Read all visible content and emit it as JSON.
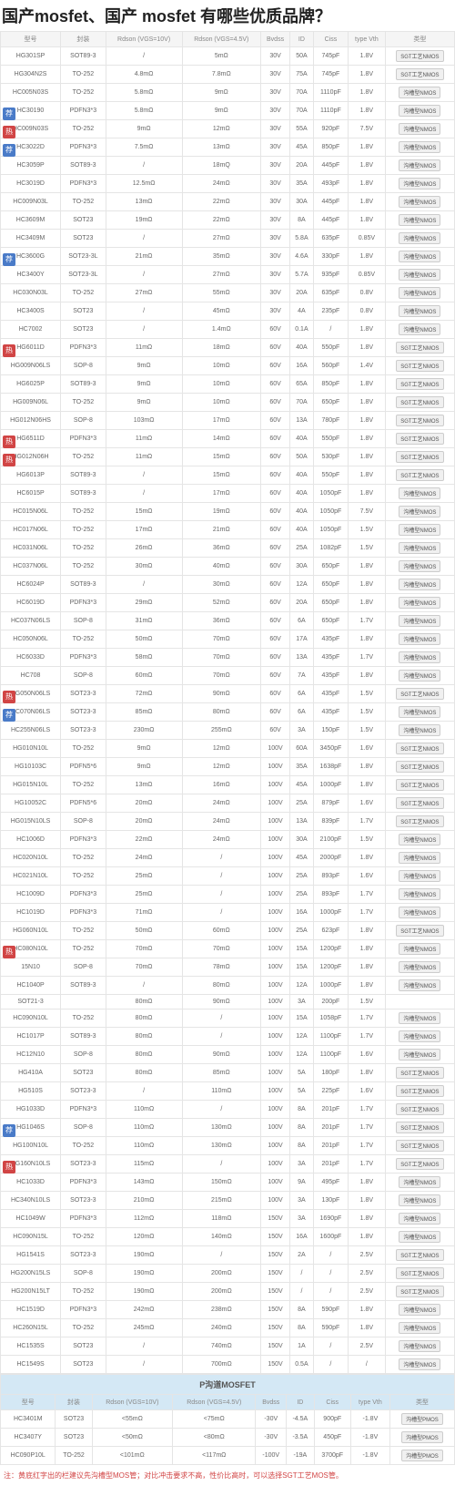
{
  "page_title": "国产mosfet、国产 mosfet 有哪些优质品牌？",
  "subtitle_left": "型号列表",
  "subtitle_right": "参数对比",
  "tag_blue_text": "荐",
  "tag_red_text": "热",
  "columns": [
    "型号",
    "封装",
    "Rdson (VGS=10V)",
    "Rdson (VGS=4.5V)",
    "Bvdss",
    "ID",
    "Ciss",
    "type Vth",
    "类型"
  ],
  "btn_normal": "沟槽型NMOS",
  "btn_sgt": "SGT工艺NMOS",
  "btn_pmos": "沟槽型PMOS",
  "section_p": "P沟道MOSFET",
  "note_text": "注：黄底红字出的栏建议先沟槽型MOS管；对比冲击要求不高，性价比高时，可以选择SGT工艺MOS管。",
  "rows": [
    {
      "tag": "",
      "c": [
        "HG301SP",
        "SOT89-3",
        "/",
        "5mΩ",
        "30V",
        "50A",
        "745pF",
        "1.8V",
        "sgt"
      ]
    },
    {
      "tag": "",
      "c": [
        "HG304N2S",
        "TO-252",
        "4.8mΩ",
        "7.8mΩ",
        "30V",
        "75A",
        "745pF",
        "1.8V",
        "sgt"
      ]
    },
    {
      "tag": "",
      "c": [
        "HC005N03S",
        "TO-252",
        "5.8mΩ",
        "9mΩ",
        "30V",
        "70A",
        "1110pF",
        "1.8V",
        "normal"
      ]
    },
    {
      "tag": "荐",
      "c": [
        "HC30190",
        "PDFN3*3",
        "5.8mΩ",
        "9mΩ",
        "30V",
        "70A",
        "1110pF",
        "1.8V",
        "normal"
      ]
    },
    {
      "tag": "热",
      "c": [
        "HC009N03S",
        "TO-252",
        "9mΩ",
        "12mΩ",
        "30V",
        "55A",
        "920pF",
        "7.5V",
        "normal"
      ]
    },
    {
      "tag": "荐",
      "c": [
        "HC3022D",
        "PDFN3*3",
        "7.5mΩ",
        "13mΩ",
        "30V",
        "45A",
        "850pF",
        "1.8V",
        "normal"
      ]
    },
    {
      "tag": "",
      "c": [
        "HC3059P",
        "SOT89-3",
        "/",
        "18mQ",
        "30V",
        "20A",
        "445pF",
        "1.8V",
        "normal"
      ]
    },
    {
      "tag": "",
      "c": [
        "HC3019D",
        "PDFN3*3",
        "12.5mΩ",
        "24mΩ",
        "30V",
        "35A",
        "493pF",
        "1.8V",
        "normal"
      ]
    },
    {
      "tag": "",
      "c": [
        "HC009N03L",
        "TO-252",
        "13mΩ",
        "22mΩ",
        "30V",
        "30A",
        "445pF",
        "1.8V",
        "normal"
      ]
    },
    {
      "tag": "",
      "c": [
        "HC3609M",
        "SOT23",
        "19mΩ",
        "22mΩ",
        "30V",
        "8A",
        "445pF",
        "1.8V",
        "normal"
      ]
    },
    {
      "tag": "",
      "c": [
        "HC3409M",
        "SOT23",
        "/",
        "27mΩ",
        "30V",
        "5.8A",
        "635pF",
        "0.85V",
        "normal"
      ]
    },
    {
      "tag": "荐",
      "c": [
        "HC3600G",
        "SOT23-3L",
        "21mΩ",
        "35mΩ",
        "30V",
        "4.6A",
        "330pF",
        "1.8V",
        "normal"
      ]
    },
    {
      "tag": "",
      "c": [
        "HC3400Y",
        "SOT23-3L",
        "/",
        "27mΩ",
        "30V",
        "5.7A",
        "935pF",
        "0.85V",
        "normal"
      ]
    },
    {
      "tag": "",
      "c": [
        "HC030N03L",
        "TO-252",
        "27mΩ",
        "55mΩ",
        "30V",
        "20A",
        "635pF",
        "0.8V",
        "normal"
      ]
    },
    {
      "tag": "",
      "c": [
        "HC3400S",
        "SOT23",
        "/",
        "45mΩ",
        "30V",
        "4A",
        "235pF",
        "0.8V",
        "normal"
      ]
    },
    {
      "tag": "",
      "c": [
        "HC7002",
        "SOT23",
        "/",
        "1.4mΩ",
        "60V",
        "0.1A",
        "/",
        "1.8V",
        "normal"
      ]
    },
    {
      "tag": "热",
      "c": [
        "HG6011D",
        "PDFN3*3",
        "11mΩ",
        "18mΩ",
        "60V",
        "40A",
        "550pF",
        "1.8V",
        "sgt"
      ]
    },
    {
      "tag": "",
      "c": [
        "HG009N06LS",
        "SOP-8",
        "9mΩ",
        "10mΩ",
        "60V",
        "16A",
        "560pF",
        "1.4V",
        "sgt"
      ]
    },
    {
      "tag": "",
      "c": [
        "HG6025P",
        "SOT89-3",
        "9mΩ",
        "10mΩ",
        "60V",
        "65A",
        "850pF",
        "1.8V",
        "sgt"
      ]
    },
    {
      "tag": "",
      "c": [
        "HG009N06L",
        "TO-252",
        "9mΩ",
        "10mΩ",
        "60V",
        "70A",
        "650pF",
        "1.8V",
        "sgt"
      ]
    },
    {
      "tag": "",
      "c": [
        "HG012N06HS",
        "SOP-8",
        "103mΩ",
        "17mΩ",
        "60V",
        "13A",
        "780pF",
        "1.8V",
        "sgt"
      ]
    },
    {
      "tag": "热",
      "c": [
        "HG6511D",
        "PDFN3*3",
        "11mΩ",
        "14mΩ",
        "60V",
        "40A",
        "550pF",
        "1.8V",
        "sgt"
      ]
    },
    {
      "tag": "热",
      "c": [
        "HG012N06H",
        "TO-252",
        "11mΩ",
        "15mΩ",
        "60V",
        "50A",
        "530pF",
        "1.8V",
        "sgt"
      ]
    },
    {
      "tag": "",
      "c": [
        "HG6013P",
        "SOT89-3",
        "/",
        "15mΩ",
        "60V",
        "40A",
        "550pF",
        "1.8V",
        "sgt"
      ]
    },
    {
      "tag": "",
      "c": [
        "HC6015P",
        "SOT89-3",
        "/",
        "17mΩ",
        "60V",
        "40A",
        "1050pF",
        "1.8V",
        "normal"
      ]
    },
    {
      "tag": "",
      "c": [
        "HC015N06L",
        "TO-252",
        "15mΩ",
        "19mΩ",
        "60V",
        "40A",
        "1050pF",
        "7.5V",
        "normal"
      ]
    },
    {
      "tag": "",
      "c": [
        "HC017N06L",
        "TO-252",
        "17mΩ",
        "21mΩ",
        "60V",
        "40A",
        "1050pF",
        "1.5V",
        "normal"
      ]
    },
    {
      "tag": "",
      "c": [
        "HC031N06L",
        "TO-252",
        "26mΩ",
        "36mΩ",
        "60V",
        "25A",
        "1082pF",
        "1.5V",
        "normal"
      ]
    },
    {
      "tag": "",
      "c": [
        "HC037N06L",
        "TO-252",
        "30mΩ",
        "40mΩ",
        "60V",
        "30A",
        "650pF",
        "1.8V",
        "normal"
      ]
    },
    {
      "tag": "",
      "c": [
        "HC6024P",
        "SOT89-3",
        "/",
        "30mΩ",
        "60V",
        "12A",
        "650pF",
        "1.8V",
        "normal"
      ]
    },
    {
      "tag": "",
      "c": [
        "HC6019D",
        "PDFN3*3",
        "29mΩ",
        "52mΩ",
        "60V",
        "20A",
        "650pF",
        "1.8V",
        "normal"
      ]
    },
    {
      "tag": "",
      "c": [
        "HC037N06LS",
        "SOP-8",
        "31mΩ",
        "36mΩ",
        "60V",
        "6A",
        "650pF",
        "1.7V",
        "normal"
      ]
    },
    {
      "tag": "",
      "c": [
        "HC050N06L",
        "TO-252",
        "50mΩ",
        "70mΩ",
        "60V",
        "17A",
        "435pF",
        "1.8V",
        "normal"
      ]
    },
    {
      "tag": "",
      "c": [
        "HC6033D",
        "PDFN3*3",
        "58mΩ",
        "70mΩ",
        "60V",
        "13A",
        "435pF",
        "1.7V",
        "normal"
      ]
    },
    {
      "tag": "",
      "c": [
        "HC708",
        "SOP-8",
        "60mΩ",
        "70mΩ",
        "60V",
        "7A",
        "435pF",
        "1.8V",
        "normal"
      ]
    },
    {
      "tag": "热",
      "c": [
        "HG050N06LS",
        "SOT23-3",
        "72mΩ",
        "90mΩ",
        "60V",
        "6A",
        "435pF",
        "1.5V",
        "sgt"
      ]
    },
    {
      "tag": "荐",
      "c": [
        "HC070N06LS",
        "SOT23-3",
        "85mΩ",
        "80mΩ",
        "60V",
        "6A",
        "435pF",
        "1.5V",
        "normal"
      ]
    },
    {
      "tag": "",
      "c": [
        "HC255N06LS",
        "SOT23-3",
        "230mΩ",
        "255mΩ",
        "60V",
        "3A",
        "150pF",
        "1.5V",
        "normal"
      ]
    },
    {
      "tag": "",
      "c": [
        "HG010N10L",
        "TO-252",
        "9mΩ",
        "12mΩ",
        "100V",
        "60A",
        "3450pF",
        "1.6V",
        "sgt"
      ]
    },
    {
      "tag": "",
      "c": [
        "HG10103C",
        "PDFN5*6",
        "9mΩ",
        "12mΩ",
        "100V",
        "35A",
        "1638pF",
        "1.8V",
        "sgt"
      ]
    },
    {
      "tag": "",
      "c": [
        "HG015N10L",
        "TO-252",
        "13mΩ",
        "16mΩ",
        "100V",
        "45A",
        "1000pF",
        "1.8V",
        "sgt"
      ]
    },
    {
      "tag": "",
      "c": [
        "HG10052C",
        "PDFN5*6",
        "20mΩ",
        "24mΩ",
        "100V",
        "25A",
        "879pF",
        "1.6V",
        "sgt"
      ]
    },
    {
      "tag": "",
      "c": [
        "HG015N10LS",
        "SOP-8",
        "20mΩ",
        "24mΩ",
        "100V",
        "13A",
        "839pF",
        "1.7V",
        "sgt"
      ]
    },
    {
      "tag": "",
      "c": [
        "HC1006D",
        "PDFN3*3",
        "22mΩ",
        "24mΩ",
        "100V",
        "30A",
        "2100pF",
        "1.5V",
        "normal"
      ]
    },
    {
      "tag": "",
      "c": [
        "HC020N10L",
        "TO-252",
        "24mΩ",
        "/",
        "100V",
        "45A",
        "2000pF",
        "1.8V",
        "normal"
      ]
    },
    {
      "tag": "",
      "c": [
        "HC021N10L",
        "TO-252",
        "25mΩ",
        "/",
        "100V",
        "25A",
        "893pF",
        "1.6V",
        "normal"
      ]
    },
    {
      "tag": "",
      "c": [
        "HC1009D",
        "PDFN3*3",
        "25mΩ",
        "/",
        "100V",
        "25A",
        "893pF",
        "1.7V",
        "normal"
      ]
    },
    {
      "tag": "",
      "c": [
        "HC1019D",
        "PDFN3*3",
        "71mΩ",
        "/",
        "100V",
        "16A",
        "1000pF",
        "1.7V",
        "normal"
      ]
    },
    {
      "tag": "",
      "c": [
        "HG060N10L",
        "TO-252",
        "50mΩ",
        "60mΩ",
        "100V",
        "25A",
        "623pF",
        "1.8V",
        "sgt"
      ]
    },
    {
      "tag": "热",
      "c": [
        "HC080N10L",
        "TO-252",
        "70mΩ",
        "70mΩ",
        "100V",
        "15A",
        "1200pF",
        "1.8V",
        "normal"
      ]
    },
    {
      "tag": "",
      "c": [
        "15N10",
        "SOP-8",
        "70mΩ",
        "78mΩ",
        "100V",
        "15A",
        "1200pF",
        "1.8V",
        "normal"
      ]
    },
    {
      "tag": "",
      "c": [
        "HC1040P",
        "SOT89-3",
        "/",
        "80mΩ",
        "100V",
        "12A",
        "1000pF",
        "1.8V",
        "normal"
      ]
    },
    {
      "tag": "",
      "c": [
        "SOT21-3",
        "",
        "80mΩ",
        "90mΩ",
        "100V",
        "3A",
        "200pF",
        "1.5V",
        ""
      ]
    },
    {
      "tag": "",
      "c": [
        "HC090N10L",
        "TO-252",
        "80mΩ",
        "/",
        "100V",
        "15A",
        "1058pF",
        "1.7V",
        "normal"
      ]
    },
    {
      "tag": "",
      "c": [
        "HC1017P",
        "SOT89-3",
        "80mΩ",
        "/",
        "100V",
        "12A",
        "1100pF",
        "1.7V",
        "normal"
      ]
    },
    {
      "tag": "",
      "c": [
        "HC12N10",
        "SOP-8",
        "80mΩ",
        "90mΩ",
        "100V",
        "12A",
        "1100pF",
        "1.6V",
        "normal"
      ]
    },
    {
      "tag": "",
      "c": [
        "HG410A",
        "SOT23",
        "80mΩ",
        "85mΩ",
        "100V",
        "5A",
        "180pF",
        "1.8V",
        "sgt"
      ]
    },
    {
      "tag": "",
      "c": [
        "HG510S",
        "SOT23-3",
        "/",
        "110mΩ",
        "100V",
        "5A",
        "225pF",
        "1.6V",
        "sgt"
      ]
    },
    {
      "tag": "",
      "c": [
        "HG1033D",
        "PDFN3*3",
        "110mΩ",
        "/",
        "100V",
        "8A",
        "201pF",
        "1.7V",
        "sgt"
      ]
    },
    {
      "tag": "荐",
      "c": [
        "HG1046S",
        "SOP-8",
        "110mΩ",
        "130mΩ",
        "100V",
        "8A",
        "201pF",
        "1.7V",
        "sgt"
      ]
    },
    {
      "tag": "",
      "c": [
        "HG100N10L",
        "TO-252",
        "110mΩ",
        "130mΩ",
        "100V",
        "8A",
        "201pF",
        "1.7V",
        "sgt"
      ]
    },
    {
      "tag": "热",
      "c": [
        "HG160N10LS",
        "SOT23-3",
        "115mΩ",
        "/",
        "100V",
        "3A",
        "201pF",
        "1.7V",
        "sgt"
      ]
    },
    {
      "tag": "",
      "c": [
        "HC1033D",
        "PDFN3*3",
        "143mΩ",
        "150mΩ",
        "100V",
        "9A",
        "495pF",
        "1.8V",
        "normal"
      ]
    },
    {
      "tag": "",
      "c": [
        "HC340N10LS",
        "SOT23-3",
        "210mΩ",
        "215mΩ",
        "100V",
        "3A",
        "130pF",
        "1.8V",
        "normal"
      ]
    },
    {
      "tag": "",
      "c": [
        "HC1049W",
        "PDFN3*3",
        "112mΩ",
        "118mΩ",
        "150V",
        "3A",
        "1690pF",
        "1.8V",
        "normal"
      ]
    },
    {
      "tag": "",
      "c": [
        "HC090N15L",
        "TO-252",
        "120mΩ",
        "140mΩ",
        "150V",
        "16A",
        "1600pF",
        "1.8V",
        "normal"
      ]
    },
    {
      "tag": "",
      "c": [
        "HG1541S",
        "SOT23-3",
        "190mΩ",
        "/",
        "150V",
        "2A",
        "/",
        "2.5V",
        "sgt"
      ]
    },
    {
      "tag": "",
      "c": [
        "HG200N15LS",
        "SOP-8",
        "190mΩ",
        "200mΩ",
        "150V",
        "/",
        "/",
        "2.5V",
        "sgt"
      ]
    },
    {
      "tag": "",
      "c": [
        "HG200N15LT",
        "TO-252",
        "190mΩ",
        "200mΩ",
        "150V",
        "/",
        "/",
        "2.5V",
        "sgt"
      ]
    },
    {
      "tag": "",
      "c": [
        "HC1519D",
        "PDFN3*3",
        "242mΩ",
        "238mΩ",
        "150V",
        "8A",
        "590pF",
        "1.8V",
        "normal"
      ]
    },
    {
      "tag": "",
      "c": [
        "HC260N15L",
        "TO-252",
        "245mΩ",
        "240mΩ",
        "150V",
        "8A",
        "590pF",
        "1.8V",
        "normal"
      ]
    },
    {
      "tag": "",
      "c": [
        "HC1535S",
        "SOT23",
        "/",
        "740mΩ",
        "150V",
        "1A",
        "/",
        "2.5V",
        "normal"
      ]
    },
    {
      "tag": "",
      "c": [
        "HC1549S",
        "SOT23",
        "/",
        "700mΩ",
        "150V",
        "0.5A",
        "/",
        "/",
        "normal"
      ]
    }
  ],
  "p_rows": [
    {
      "c": [
        "HC3401M",
        "SOT23",
        "<55mΩ",
        "<75mΩ",
        "-30V",
        "-4.5A",
        "900pF",
        "-1.8V",
        "pmos"
      ]
    },
    {
      "c": [
        "HC3407Y",
        "SOT23",
        "<50mΩ",
        "<80mΩ",
        "-30V",
        "-3.5A",
        "450pF",
        "-1.8V",
        "pmos"
      ]
    },
    {
      "c": [
        "HC090P10L",
        "TO-252",
        "<101mΩ",
        "<117mΩ",
        "-100V",
        "-19A",
        "3700pF",
        "-1.8V",
        "pmos"
      ]
    }
  ]
}
